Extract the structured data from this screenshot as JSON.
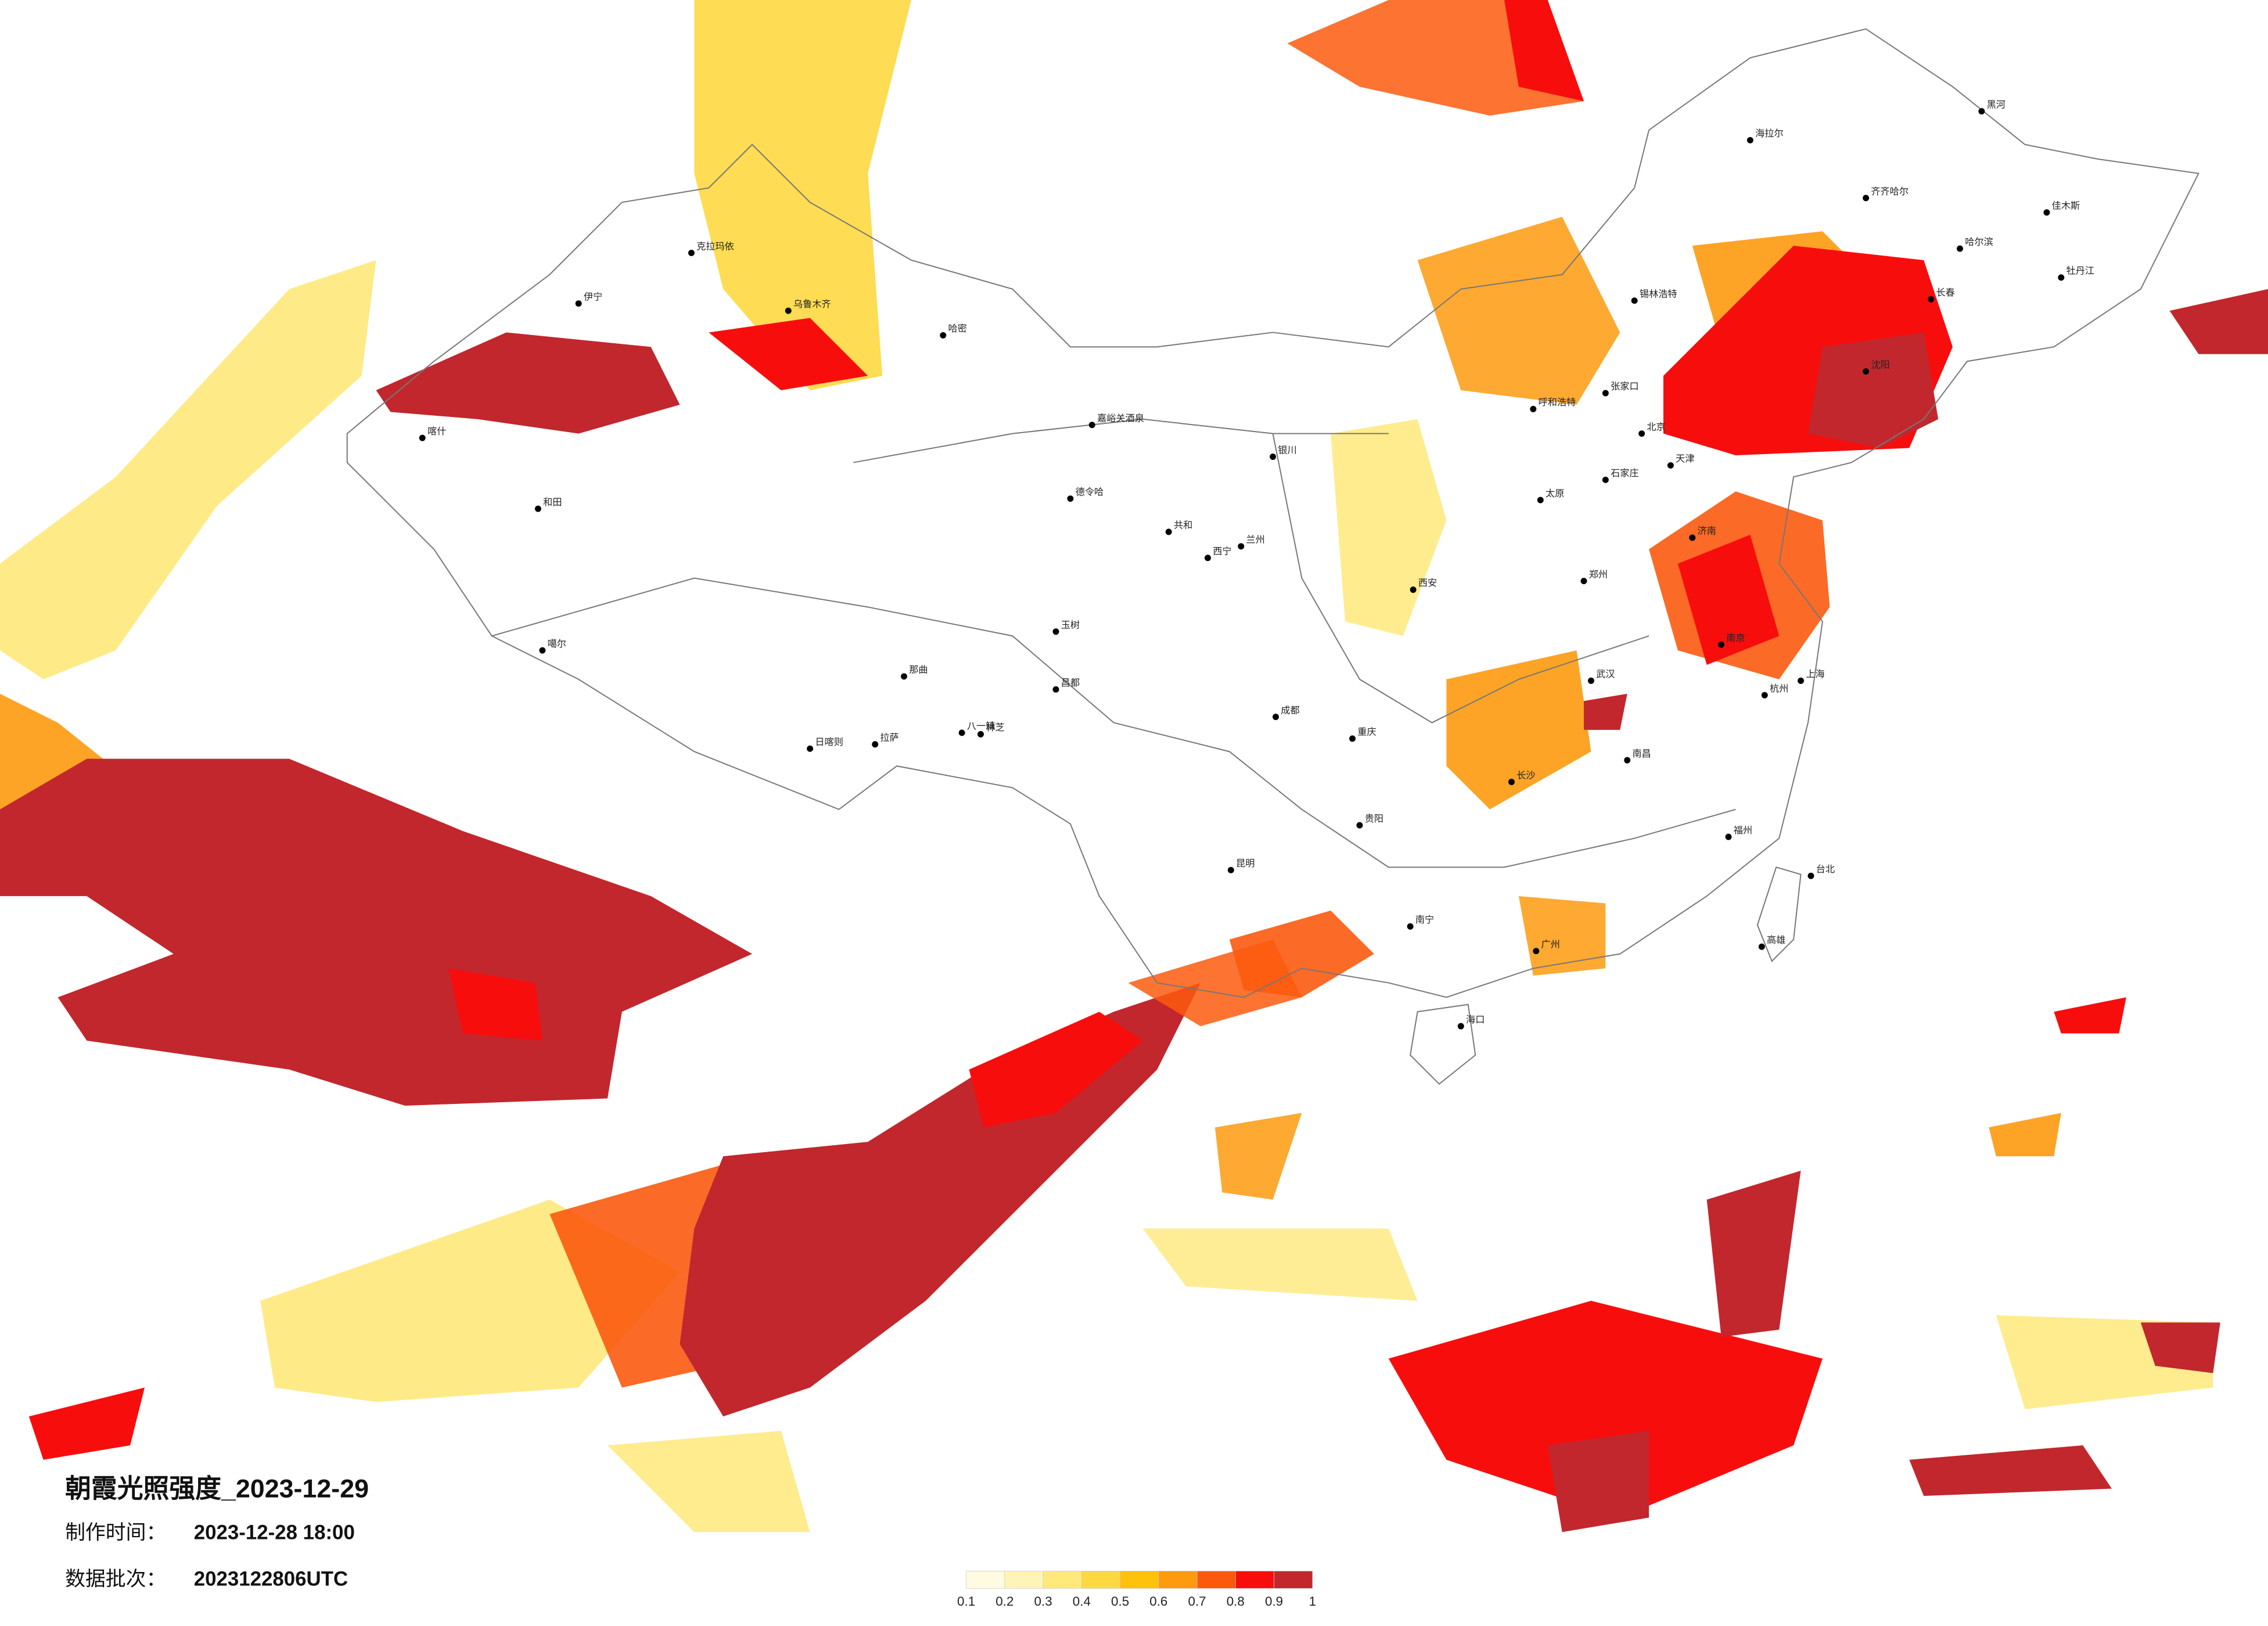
{
  "title": "朝霞光照强度_2023-12-29",
  "info": {
    "made_label": "制作时间：",
    "made_value": "2023-12-28 18:00",
    "batch_label": "数据批次：",
    "batch_value": "2023122806UTC"
  },
  "legend": {
    "ticks": [
      0.1,
      0.2,
      0.3,
      0.4,
      0.5,
      0.6,
      0.7,
      0.8,
      0.9,
      1
    ],
    "colors": [
      "#fffbe0",
      "#fff4b8",
      "#fee97a",
      "#fed840",
      "#fec20d",
      "#fd9a0e",
      "#fb5a0e",
      "#f80d0d",
      "#c1272d"
    ]
  },
  "cities": [
    "伊宁",
    "克拉玛依",
    "乌鲁木齐",
    "哈密",
    "喀什",
    "和田",
    "噶尔",
    "日喀则",
    "拉萨",
    "八一镇",
    "林芝",
    "那曲",
    "昌都",
    "玉树",
    "嘉峪关酒泉",
    "德令哈",
    "共和",
    "西宁",
    "兰州",
    "银川",
    "呼和浩特",
    "张家口",
    "北京",
    "天津",
    "石家庄",
    "太原",
    "济南",
    "郑州",
    "西安",
    "成都",
    "重庆",
    "贵阳",
    "昆明",
    "南宁",
    "广州",
    "海口",
    "长沙",
    "武汉",
    "南昌",
    "杭州",
    "上海",
    "南京",
    "福州",
    "台北",
    "高雄",
    "哈尔滨",
    "长春",
    "沈阳",
    "齐齐哈尔",
    "海拉尔",
    "黑河",
    "佳木斯",
    "牡丹江",
    "锡林浩特"
  ]
}
